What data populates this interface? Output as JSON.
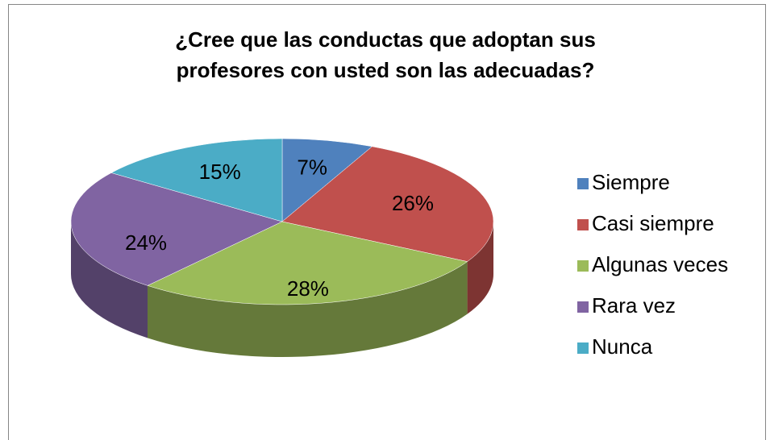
{
  "chart_data": {
    "type": "pie",
    "title": "¿Cree que las conductas que adoptan sus profesores con usted son las adecuadas?",
    "categories": [
      "Siempre",
      "Casi siempre",
      "Algunas veces",
      "Rara vez",
      "Nunca"
    ],
    "values": [
      7,
      26,
      28,
      24,
      15
    ],
    "value_labels": [
      "7%",
      "26%",
      "28%",
      "24%",
      "15%"
    ],
    "colors": [
      "#4f81bd",
      "#c0504d",
      "#9bbb59",
      "#8064a2",
      "#4bacc6"
    ],
    "legend": "right"
  }
}
